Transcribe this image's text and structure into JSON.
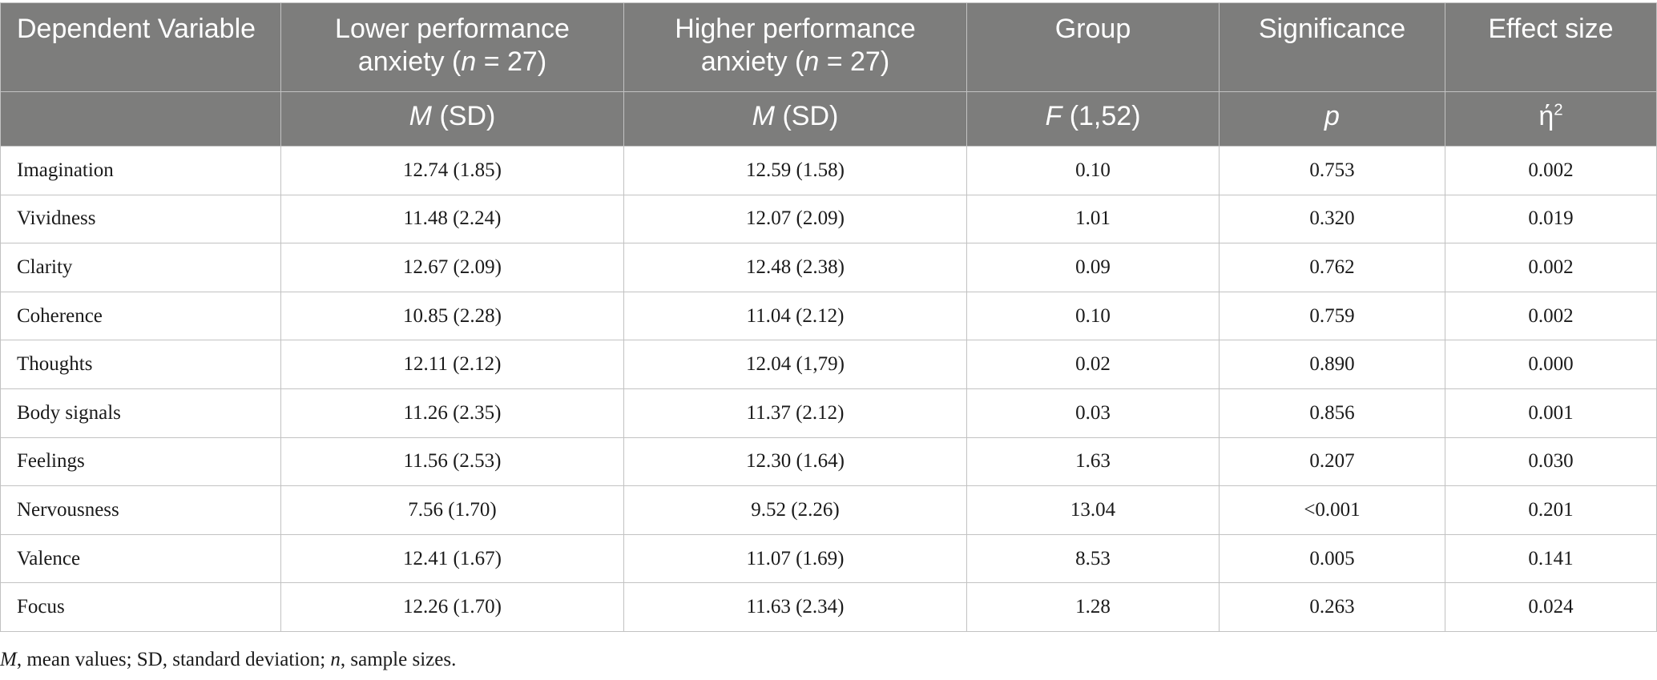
{
  "header": {
    "dependent_variable": "Dependent Variable",
    "lower": {
      "pre": "Lower performance anxiety (",
      "n": "n",
      "post": " = 27)"
    },
    "higher": {
      "pre": "Higher performance anxiety (",
      "n": "n",
      "post": " = 27)"
    },
    "group": "Group",
    "significance": "Significance",
    "effect_size": "Effect size",
    "sub_m": "M",
    "sub_sd": " (SD)",
    "sub_f": "F",
    "sub_df": " (1,52)",
    "sub_p": "p",
    "sub_eta": "ή",
    "sub_eta_sup": "2"
  },
  "rows": [
    {
      "label": "Imagination",
      "lower": "12.74 (1.85)",
      "higher": "12.59 (1.58)",
      "f": "0.10",
      "p": "0.753",
      "eta": "0.002"
    },
    {
      "label": "Vividness",
      "lower": "11.48 (2.24)",
      "higher": "12.07 (2.09)",
      "f": "1.01",
      "p": "0.320",
      "eta": "0.019"
    },
    {
      "label": "Clarity",
      "lower": "12.67 (2.09)",
      "higher": "12.48 (2.38)",
      "f": "0.09",
      "p": "0.762",
      "eta": "0.002"
    },
    {
      "label": "Coherence",
      "lower": "10.85 (2.28)",
      "higher": "11.04 (2.12)",
      "f": "0.10",
      "p": "0.759",
      "eta": "0.002"
    },
    {
      "label": "Thoughts",
      "lower": "12.11 (2.12)",
      "higher": "12.04 (1,79)",
      "f": "0.02",
      "p": "0.890",
      "eta": "0.000"
    },
    {
      "label": "Body signals",
      "lower": "11.26 (2.35)",
      "higher": "11.37 (2.12)",
      "f": "0.03",
      "p": "0.856",
      "eta": "0.001"
    },
    {
      "label": "Feelings",
      "lower": "11.56 (2.53)",
      "higher": "12.30 (1.64)",
      "f": "1.63",
      "p": "0.207",
      "eta": "0.030"
    },
    {
      "label": "Nervousness",
      "lower": "7.56 (1.70)",
      "higher": "9.52 (2.26)",
      "f": "13.04",
      "p": "<0.001",
      "eta": "0.201"
    },
    {
      "label": "Valence",
      "lower": "12.41 (1.67)",
      "higher": "11.07 (1.69)",
      "f": "8.53",
      "p": "0.005",
      "eta": "0.141"
    },
    {
      "label": "Focus",
      "lower": "12.26 (1.70)",
      "higher": "11.63 (2.34)",
      "f": "1.28",
      "p": "0.263",
      "eta": "0.024"
    }
  ],
  "note": {
    "m": "M",
    "t1": ", mean values; SD, standard deviation; ",
    "n": "n",
    "t2": ", sample sizes."
  }
}
